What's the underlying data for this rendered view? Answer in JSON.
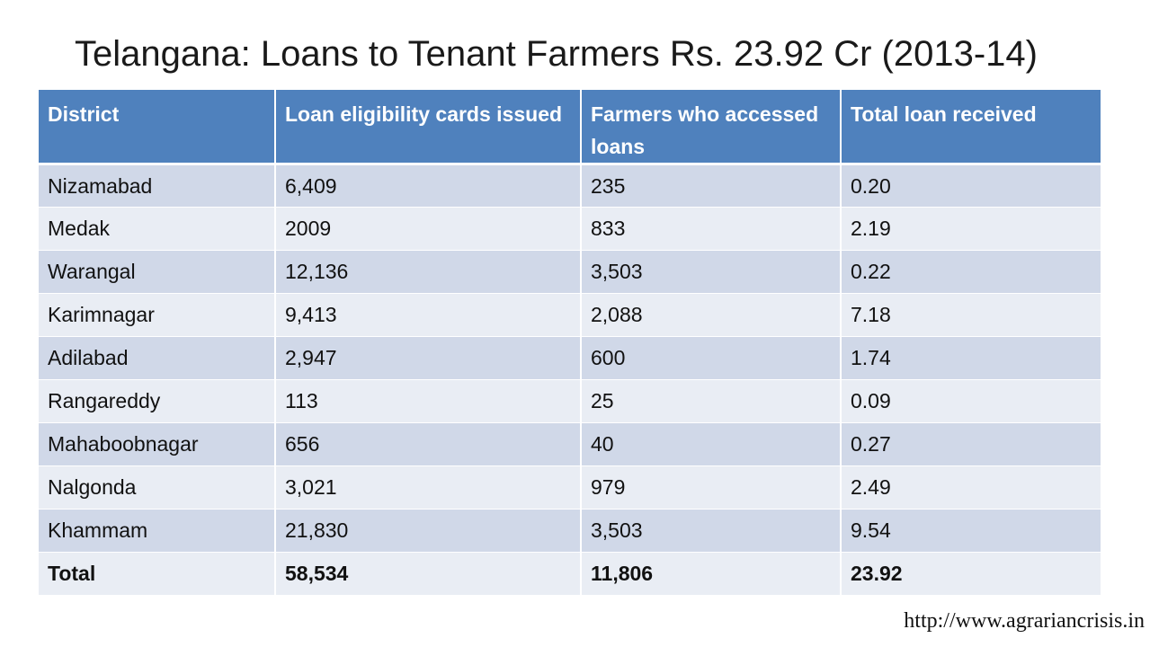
{
  "title": "Telangana: Loans to Tenant Farmers Rs. 23.92 Cr (2013-14)",
  "table": {
    "headers": [
      "District",
      "Loan eligibility cards issued",
      "Farmers who accessed loans",
      "Total loan received"
    ],
    "rows": [
      [
        "Nizamabad",
        "6,409",
        "235",
        "0.20"
      ],
      [
        "Medak",
        "2009",
        "833",
        "2.19"
      ],
      [
        "Warangal",
        "12,136",
        "3,503",
        "0.22"
      ],
      [
        "Karimnagar",
        "9,413",
        "2,088",
        "7.18"
      ],
      [
        "Adilabad",
        "2,947",
        "600",
        "1.74"
      ],
      [
        "Rangareddy",
        "113",
        "25",
        "0.09"
      ],
      [
        "Mahaboobnagar",
        "656",
        "40",
        "0.27"
      ],
      [
        "Nalgonda",
        "3,021",
        "979",
        "2.49"
      ],
      [
        "Khammam",
        "21,830",
        "3,503",
        "9.54"
      ]
    ],
    "total": [
      "Total",
      "58,534",
      "11,806",
      "23.92"
    ]
  },
  "source": "http://www.agrariancrisis.in",
  "colors": {
    "header_bg": "#4f81bd",
    "row_odd_bg": "#d0d8e8",
    "row_even_bg": "#e9edf4"
  }
}
